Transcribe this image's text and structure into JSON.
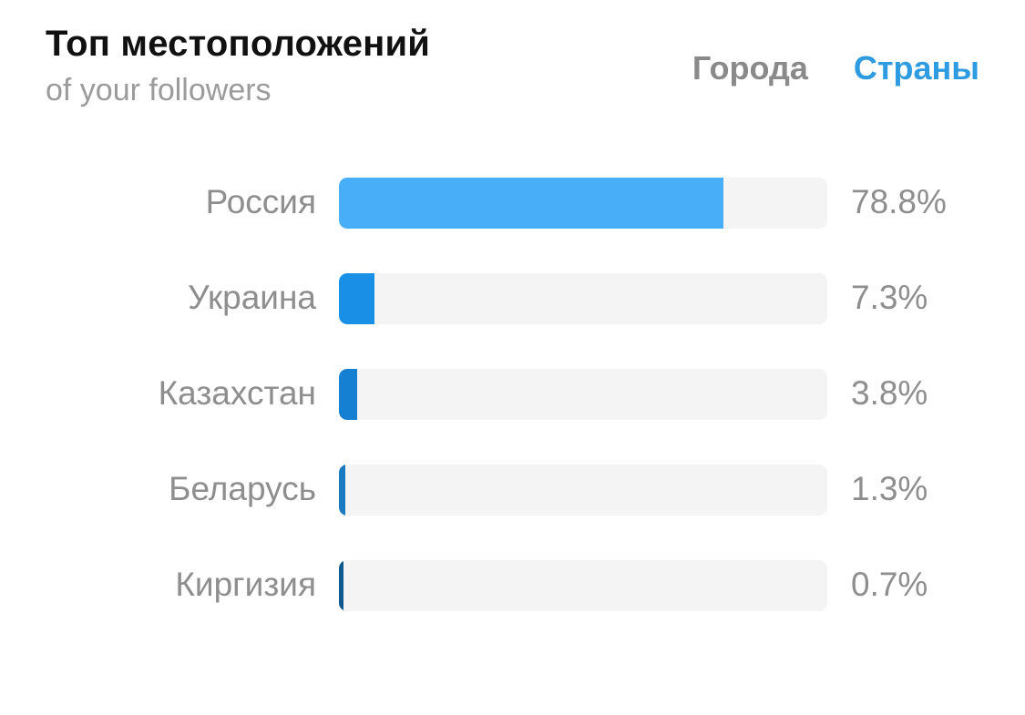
{
  "header": {
    "title": "Топ местоположений",
    "subtitle": "of your followers"
  },
  "tabs": [
    {
      "label": "Города",
      "active": false
    },
    {
      "label": "Страны",
      "active": true
    }
  ],
  "colors": {
    "accent": "#2f9be0",
    "track": "#f4f4f4",
    "bar_colors": [
      "#48aef7",
      "#1a8fe6",
      "#157fd1",
      "#1a7bc3",
      "#0e5a8f"
    ]
  },
  "chart_data": {
    "type": "bar",
    "orientation": "horizontal",
    "categories": [
      "Россия",
      "Украина",
      "Казахстан",
      "Беларусь",
      "Киргизия"
    ],
    "values": [
      78.8,
      7.3,
      3.8,
      1.3,
      0.7
    ],
    "value_labels": [
      "78.8%",
      "7.3%",
      "3.8%",
      "1.3%",
      "0.7%"
    ],
    "xlim": [
      0,
      100
    ],
    "grid": false,
    "legend": "none"
  }
}
